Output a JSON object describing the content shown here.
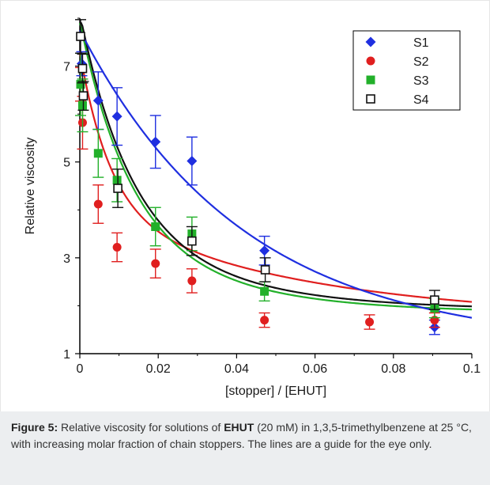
{
  "chart_data": {
    "type": "scatter",
    "xlabel": "[stopper] / [EHUT]",
    "ylabel": "Relative viscosity",
    "xlim": [
      0,
      0.1
    ],
    "ylim": [
      1,
      8
    ],
    "x_ticks": [
      0,
      0.02,
      0.04,
      0.06,
      0.08,
      0.1
    ],
    "x_tick_labels": [
      "0",
      "0.02",
      "0.04",
      "0.06",
      "0.08",
      "0.1"
    ],
    "y_ticks": [
      1,
      3,
      5,
      7
    ],
    "y_tick_labels": [
      "1",
      "3",
      "5",
      "7"
    ],
    "grid": false,
    "legend_position": "top-right",
    "series": [
      {
        "name": "S1",
        "marker": "diamond",
        "color": "#1f2fe0",
        "points": [
          {
            "x": 0.0005,
            "y": 7.05,
            "err": 0.25
          },
          {
            "x": 0.0047,
            "y": 6.28,
            "err": 0.6
          },
          {
            "x": 0.0095,
            "y": 5.95,
            "err": 0.6
          },
          {
            "x": 0.0193,
            "y": 5.42,
            "err": 0.55
          },
          {
            "x": 0.0286,
            "y": 5.02,
            "err": 0.5
          },
          {
            "x": 0.0471,
            "y": 3.15,
            "err": 0.3
          },
          {
            "x": 0.0905,
            "y": 1.55,
            "err": 0.15
          }
        ],
        "fit": {
          "a": 1.15,
          "b": 6.6,
          "k": 24
        }
      },
      {
        "name": "S2",
        "marker": "circle",
        "color": "#e01f1f",
        "points": [
          {
            "x": 0.0002,
            "y": 6.62,
            "err": 0.35
          },
          {
            "x": 0.0007,
            "y": 5.82,
            "err": 0.55
          },
          {
            "x": 0.0047,
            "y": 4.12,
            "err": 0.4
          },
          {
            "x": 0.0095,
            "y": 3.22,
            "err": 0.3
          },
          {
            "x": 0.0193,
            "y": 2.88,
            "err": 0.3
          },
          {
            "x": 0.0286,
            "y": 2.52,
            "err": 0.25
          },
          {
            "x": 0.0471,
            "y": 1.7,
            "err": 0.15
          },
          {
            "x": 0.0739,
            "y": 1.66,
            "err": 0.15
          },
          {
            "x": 0.0905,
            "y": 1.7,
            "err": 0.15
          }
        ],
        "fit": {
          "a": 1.7,
          "b": 5.6,
          "k": 130,
          "c": 2.3,
          "k2": 18
        }
      },
      {
        "name": "S3",
        "marker": "square",
        "color": "#22b02a",
        "points": [
          {
            "x": 0.0002,
            "y": 6.62,
            "err": 0.65
          },
          {
            "x": 0.0007,
            "y": 6.18,
            "err": 0.55
          },
          {
            "x": 0.0047,
            "y": 5.18,
            "err": 0.5
          },
          {
            "x": 0.0095,
            "y": 4.62,
            "err": 0.45
          },
          {
            "x": 0.0193,
            "y": 3.65,
            "err": 0.4
          },
          {
            "x": 0.0286,
            "y": 3.5,
            "err": 0.35
          },
          {
            "x": 0.0471,
            "y": 2.3,
            "err": 0.2
          },
          {
            "x": 0.0905,
            "y": 1.95,
            "err": 0.2
          }
        ],
        "fit": {
          "a": 1.84,
          "b": 6.1,
          "k": 78,
          "c": 1.6,
          "k2": 30
        }
      },
      {
        "name": "S4",
        "marker": "open-square",
        "color": "#111111",
        "points": [
          {
            "x": 0.0002,
            "y": 7.62,
            "err": 0.35
          },
          {
            "x": 0.0007,
            "y": 6.95,
            "err": 0.3
          },
          {
            "x": 0.0009,
            "y": 6.38,
            "err": 0.3
          },
          {
            "x": 0.0097,
            "y": 4.45,
            "err": 0.4
          },
          {
            "x": 0.0286,
            "y": 3.35,
            "err": 0.3
          },
          {
            "x": 0.0473,
            "y": 2.75,
            "err": 0.25
          },
          {
            "x": 0.0905,
            "y": 2.12,
            "err": 0.2
          }
        ],
        "fit": {
          "a": 1.9,
          "b": 6.2,
          "k": 78,
          "c": 1.7,
          "k2": 30
        }
      }
    ]
  },
  "caption": {
    "label": "Figure 5:",
    "text_a": " Relative viscosity for solutions of ",
    "bold": "EHUT",
    "text_b": " (20 mM) in 1,3,5-trimethylbenzene at 25 °C, with increasing molar fraction of chain stoppers. The lines are a guide for the eye only."
  }
}
